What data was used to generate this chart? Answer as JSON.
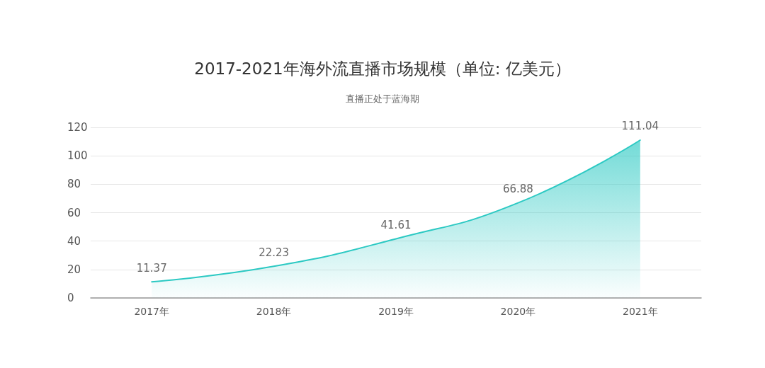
{
  "chart_data": {
    "type": "area",
    "title": "2017-2021年海外流直播市场规模（单位: 亿美元）",
    "subtitle": "直播正处于蓝海期",
    "categories": [
      "2017年",
      "2018年",
      "2019年",
      "2020年",
      "2021年"
    ],
    "values": [
      11.37,
      22.23,
      41.61,
      66.88,
      111.04
    ],
    "color": "#2cc9c3",
    "ylim": [
      0,
      120
    ],
    "yticks": [
      0,
      20,
      40,
      60,
      80,
      100,
      120
    ],
    "grid": "y",
    "data_labels": true,
    "marker": "none"
  }
}
